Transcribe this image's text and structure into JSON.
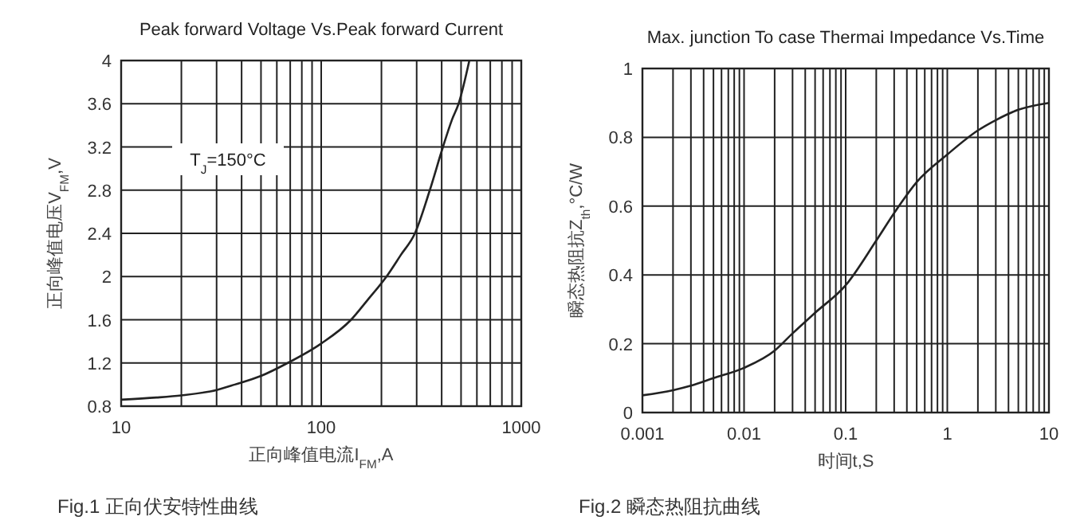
{
  "chart_data": [
    {
      "type": "line",
      "title": "Peak forward Voltage Vs.Peak forward Current",
      "xlabel": "正向峰值电流I$_{FM}$,A",
      "ylabel": "正向峰值电压V$_{FM}$,V",
      "annotations": [
        "T$_{J}$=150°C",
        "Fig.1 正向伏安特性曲线"
      ],
      "log": "x",
      "grid": true,
      "xlim": [
        10,
        1000
      ],
      "ylim": [
        0.8,
        4
      ],
      "xticks": [
        10,
        {
          "value": 20,
          "label": null
        },
        {
          "value": 30,
          "label": null
        },
        {
          "value": 40,
          "label": null
        },
        {
          "value": 50,
          "label": null
        },
        {
          "value": 60,
          "label": null
        },
        {
          "value": 70,
          "label": null
        },
        {
          "value": 80,
          "label": null
        },
        {
          "value": 90,
          "label": null
        },
        100,
        {
          "value": 200,
          "label": null
        },
        {
          "value": 300,
          "label": null
        },
        {
          "value": 400,
          "label": null
        },
        {
          "value": 500,
          "label": null
        },
        {
          "value": 600,
          "label": null
        },
        {
          "value": 700,
          "label": null
        },
        {
          "value": 800,
          "label": null
        },
        {
          "value": 900,
          "label": null
        },
        1000
      ],
      "yticks": [
        0.8,
        1.2,
        1.6,
        2,
        2.4,
        2.8,
        3.2,
        3.6,
        4
      ],
      "series": [
        {
          "color": "#222222",
          "x": [
            10,
            15,
            20,
            30,
            37,
            50,
            68,
            100,
            141,
            170,
            212,
            250,
            294,
            349,
            406,
            450,
            486,
            550
          ],
          "values": [
            0.86,
            0.88,
            0.9,
            0.95,
            1.0,
            1.08,
            1.2,
            1.38,
            1.6,
            1.78,
            2.0,
            2.2,
            2.4,
            2.8,
            3.2,
            3.45,
            3.6,
            4.0
          ]
        }
      ]
    },
    {
      "type": "line",
      "title": "Max. junction To case Thermai Impedance Vs.Time",
      "xlabel": "时间t,S",
      "ylabel": "瞬态热阻抗Z$_{th}$,°C/W",
      "annotations": [
        "Fig.2 瞬态热阻抗曲线"
      ],
      "log": "x",
      "grid": true,
      "xlim": [
        0.001,
        10
      ],
      "ylim": [
        0,
        1
      ],
      "xticks": [
        0.001,
        {
          "value": 0.002,
          "label": null
        },
        {
          "value": 0.003,
          "label": null
        },
        {
          "value": 0.004,
          "label": null
        },
        {
          "value": 0.005,
          "label": null
        },
        {
          "value": 0.006,
          "label": null
        },
        {
          "value": 0.007,
          "label": null
        },
        {
          "value": 0.008,
          "label": null
        },
        {
          "value": 0.009,
          "label": null
        },
        0.01,
        {
          "value": 0.02,
          "label": null
        },
        {
          "value": 0.03,
          "label": null
        },
        {
          "value": 0.04,
          "label": null
        },
        {
          "value": 0.05,
          "label": null
        },
        {
          "value": 0.06,
          "label": null
        },
        {
          "value": 0.07,
          "label": null
        },
        {
          "value": 0.08,
          "label": null
        },
        {
          "value": 0.09,
          "label": null
        },
        0.1,
        {
          "value": 0.2,
          "label": null
        },
        {
          "value": 0.3,
          "label": null
        },
        {
          "value": 0.4,
          "label": null
        },
        {
          "value": 0.5,
          "label": null
        },
        {
          "value": 0.6,
          "label": null
        },
        {
          "value": 0.7,
          "label": null
        },
        {
          "value": 0.8,
          "label": null
        },
        {
          "value": 0.9,
          "label": null
        },
        1,
        {
          "value": 2,
          "label": null
        },
        {
          "value": 3,
          "label": null
        },
        {
          "value": 4,
          "label": null
        },
        {
          "value": 5,
          "label": null
        },
        {
          "value": 6,
          "label": null
        },
        {
          "value": 7,
          "label": null
        },
        {
          "value": 8,
          "label": null
        },
        {
          "value": 9,
          "label": null
        },
        10
      ],
      "yticks": [
        0,
        0.2,
        0.4,
        0.6,
        0.8,
        1
      ],
      "series": [
        {
          "color": "#222222",
          "x": [
            0.001,
            0.002,
            0.003,
            0.005,
            0.01,
            0.02,
            0.03,
            0.05,
            0.1,
            0.2,
            0.3,
            0.5,
            1,
            2,
            3,
            5,
            10
          ],
          "values": [
            0.05,
            0.065,
            0.078,
            0.1,
            0.13,
            0.18,
            0.23,
            0.29,
            0.37,
            0.5,
            0.58,
            0.67,
            0.75,
            0.82,
            0.85,
            0.88,
            0.9
          ]
        }
      ]
    }
  ]
}
